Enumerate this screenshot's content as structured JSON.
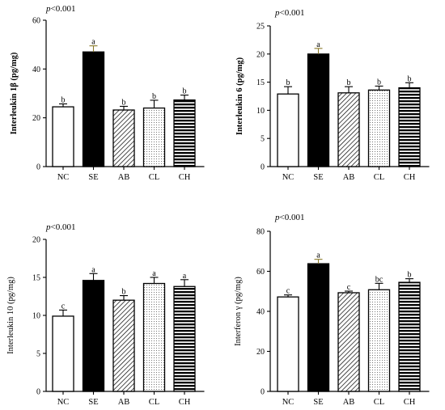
{
  "chart_data": [
    {
      "type": "bar",
      "pvalue": {
        "p": "p",
        "rest": "<0.001"
      },
      "ylabel": "Interleukin 1β (pg/mg)",
      "ylabel_bold": true,
      "ylim": [
        0,
        60
      ],
      "yticks": [
        "0",
        "20",
        "40",
        "60"
      ],
      "categories": [
        "NC",
        "SE",
        "AB",
        "CL",
        "CH"
      ],
      "values": [
        24.5,
        47.0,
        23.2,
        24.0,
        27.3
      ],
      "errors": [
        1.2,
        2.5,
        1.5,
        3.2,
        2.0
      ],
      "letters": [
        "b",
        "a",
        "b",
        "b",
        "b"
      ],
      "error_color": "#000000",
      "error_colors": [
        "#000000",
        "#8a7a2a",
        "#000000",
        "#000000",
        "#000000"
      ]
    },
    {
      "type": "bar",
      "pvalue": {
        "p": "p",
        "rest": "<0.001"
      },
      "ylabel": "Interleukin 6 (pg/mg)",
      "ylabel_bold": true,
      "ylim": [
        0,
        25
      ],
      "yticks": [
        "0",
        "5",
        "10",
        "15",
        "20",
        "25"
      ],
      "categories": [
        "NC",
        "SE",
        "AB",
        "CL",
        "CH"
      ],
      "values": [
        12.9,
        20.0,
        13.1,
        13.6,
        14.0
      ],
      "errors": [
        1.3,
        1.0,
        1.1,
        0.7,
        0.9
      ],
      "letters": [
        "b",
        "a",
        "b",
        "b",
        "b"
      ],
      "error_colors": [
        "#000000",
        "#8a7a2a",
        "#000000",
        "#000000",
        "#000000"
      ]
    },
    {
      "type": "bar",
      "pvalue": {
        "p": "p",
        "rest": "<0.001"
      },
      "ylabel": "Interleukin 10 (pg/mg)",
      "ylabel_bold": false,
      "ylim": [
        0,
        20
      ],
      "yticks": [
        "0",
        "5",
        "10",
        "15",
        "20"
      ],
      "categories": [
        "NC",
        "SE",
        "AB",
        "CL",
        "CH"
      ],
      "values": [
        9.9,
        14.6,
        12.0,
        14.2,
        13.8
      ],
      "errors": [
        0.8,
        0.9,
        0.6,
        0.8,
        0.9
      ],
      "letters": [
        "c",
        "a",
        "b",
        "a",
        "a"
      ],
      "error_colors": [
        "#000000",
        "#000000",
        "#000000",
        "#000000",
        "#000000"
      ]
    },
    {
      "type": "bar",
      "pvalue": {
        "p": "p",
        "rest": "<0.001"
      },
      "ylabel": "Interferon γ (pg/mg)",
      "ylabel_bold": false,
      "ylim": [
        0,
        80
      ],
      "yticks": [
        "0",
        "20",
        "40",
        "60",
        "80"
      ],
      "categories": [
        "NC",
        "SE",
        "AB",
        "CL",
        "CH"
      ],
      "values": [
        47.2,
        63.8,
        49.3,
        50.8,
        54.5
      ],
      "errors": [
        1.0,
        2.2,
        0.8,
        3.2,
        1.8
      ],
      "letters": [
        "c",
        "a",
        "c",
        "bc",
        "b"
      ],
      "error_colors": [
        "#000000",
        "#8a7a2a",
        "#000000",
        "#000000",
        "#000000"
      ]
    }
  ],
  "bar_styles": [
    "white",
    "black",
    "diagonal-hatch",
    "dotted",
    "horizontal-stripes"
  ]
}
